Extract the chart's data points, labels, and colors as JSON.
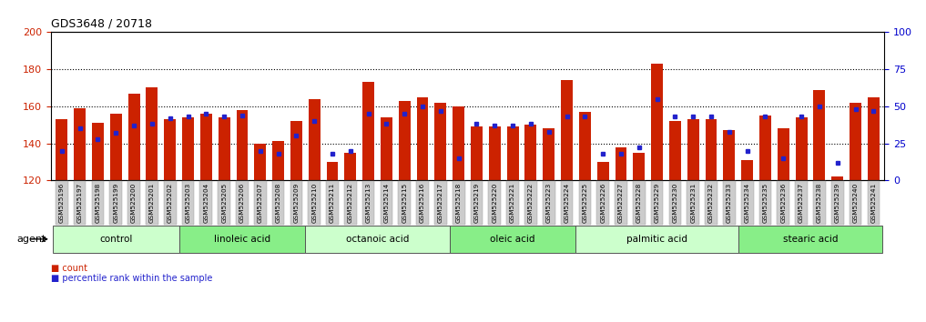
{
  "title": "GDS3648 / 20718",
  "samples": [
    "GSM525196",
    "GSM525197",
    "GSM525198",
    "GSM525199",
    "GSM525200",
    "GSM525201",
    "GSM525202",
    "GSM525203",
    "GSM525204",
    "GSM525205",
    "GSM525206",
    "GSM525207",
    "GSM525208",
    "GSM525209",
    "GSM525210",
    "GSM525211",
    "GSM525212",
    "GSM525213",
    "GSM525214",
    "GSM525215",
    "GSM525216",
    "GSM525217",
    "GSM525218",
    "GSM525219",
    "GSM525220",
    "GSM525221",
    "GSM525222",
    "GSM525223",
    "GSM525224",
    "GSM525225",
    "GSM525226",
    "GSM525227",
    "GSM525228",
    "GSM525229",
    "GSM525230",
    "GSM525231",
    "GSM525232",
    "GSM525233",
    "GSM525234",
    "GSM525235",
    "GSM525236",
    "GSM525237",
    "GSM525238",
    "GSM525239",
    "GSM525240",
    "GSM525241"
  ],
  "counts": [
    153,
    159,
    151,
    156,
    167,
    170,
    153,
    154,
    156,
    154,
    158,
    140,
    141,
    152,
    164,
    130,
    135,
    173,
    154,
    163,
    165,
    162,
    160,
    149,
    149,
    149,
    150,
    148,
    174,
    157,
    130,
    138,
    135,
    183,
    152,
    153,
    153,
    147,
    131,
    155,
    148,
    154,
    169,
    122,
    162,
    165
  ],
  "percentile_ranks": [
    20,
    35,
    28,
    32,
    37,
    38,
    42,
    43,
    45,
    43,
    44,
    20,
    18,
    30,
    40,
    18,
    20,
    45,
    38,
    45,
    50,
    47,
    15,
    38,
    37,
    37,
    38,
    33,
    43,
    43,
    18,
    18,
    22,
    55,
    43,
    43,
    43,
    33,
    20,
    43,
    15,
    43,
    50,
    12,
    48,
    47
  ],
  "groups": [
    {
      "label": "control",
      "start": 0,
      "end": 6,
      "color": "#ccffcc"
    },
    {
      "label": "linoleic acid",
      "start": 7,
      "end": 13,
      "color": "#88ee88"
    },
    {
      "label": "octanoic acid",
      "start": 14,
      "end": 21,
      "color": "#ccffcc"
    },
    {
      "label": "oleic acid",
      "start": 22,
      "end": 28,
      "color": "#88ee88"
    },
    {
      "label": "palmitic acid",
      "start": 29,
      "end": 37,
      "color": "#ccffcc"
    },
    {
      "label": "stearic acid",
      "start": 38,
      "end": 45,
      "color": "#88ee88"
    }
  ],
  "ylim_left": [
    120,
    200
  ],
  "ylim_right": [
    0,
    100
  ],
  "yticks_left": [
    120,
    140,
    160,
    180,
    200
  ],
  "yticks_right": [
    0,
    25,
    50,
    75,
    100
  ],
  "bar_color": "#cc2200",
  "dot_color": "#2222cc",
  "bg_color": "#ffffff",
  "tick_label_bg": "#cccccc",
  "xlabel_color": "#cc2200",
  "ylabel_right_color": "#0000cc",
  "grid_yticks": [
    140,
    160,
    180
  ]
}
